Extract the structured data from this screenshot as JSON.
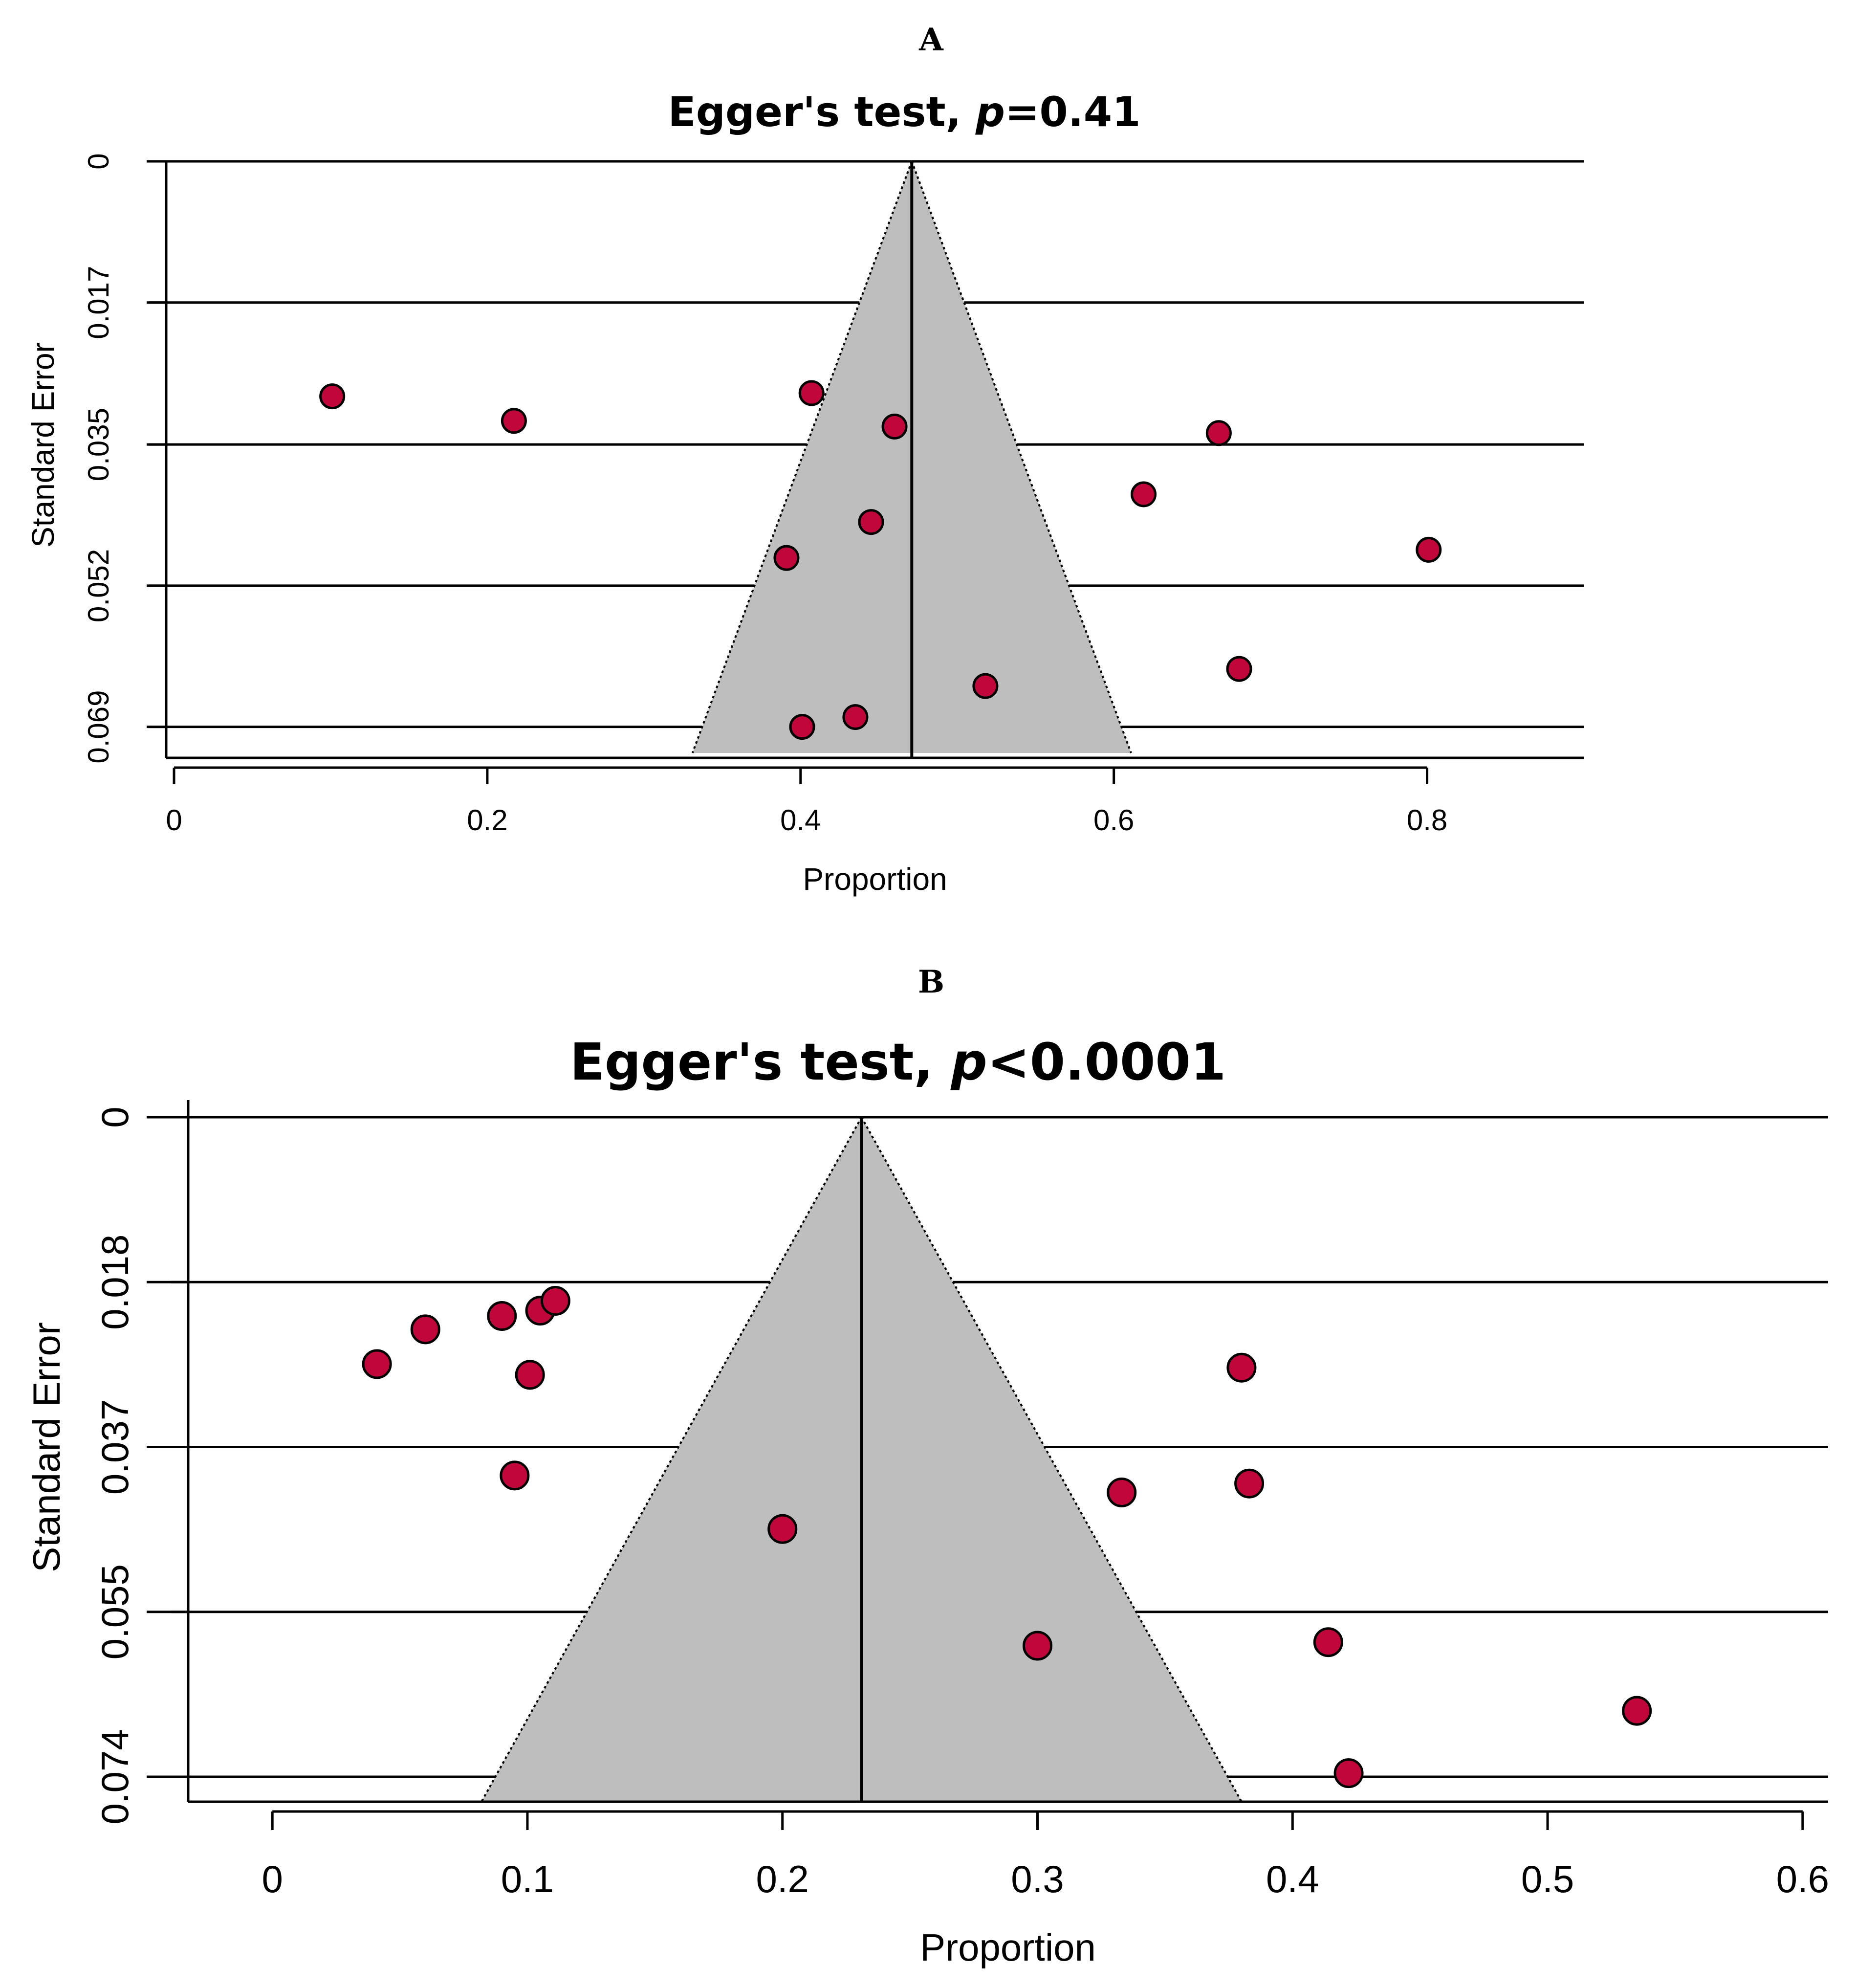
{
  "chart_data": [
    {
      "type": "scatter",
      "subtype": "funnel",
      "panel_label": "A",
      "title_prefix": "Egger's test, ",
      "title_p": "p",
      "title_suffix": "=0.41",
      "xlabel": "Proportion",
      "ylabel": "Standard Error",
      "xlim": [
        -0.005,
        0.9
      ],
      "ylim": [
        0,
        0.0725
      ],
      "x_ticks": [
        0,
        0.2,
        0.4,
        0.6,
        0.8
      ],
      "x_tick_labels": [
        "0",
        "0.2",
        "0.4",
        "0.6",
        "0.8"
      ],
      "y_ticks": [
        0,
        0.0173,
        0.0347,
        0.052,
        0.0693
      ],
      "y_tick_labels": [
        "0",
        "0.017",
        "0.035",
        "0.052",
        "0.069"
      ],
      "summary_estimate": 0.471,
      "funnel_base_se": 0.0725,
      "funnel_half_width_at_base": 0.14,
      "colors": {
        "point_fill": "#c0063b",
        "funnel_fill": "#bebebe"
      },
      "points": [
        {
          "x": 0.101,
          "y": 0.0288
        },
        {
          "x": 0.217,
          "y": 0.0318
        },
        {
          "x": 0.407,
          "y": 0.0284
        },
        {
          "x": 0.46,
          "y": 0.0325
        },
        {
          "x": 0.667,
          "y": 0.0333
        },
        {
          "x": 0.619,
          "y": 0.0408
        },
        {
          "x": 0.445,
          "y": 0.0442
        },
        {
          "x": 0.391,
          "y": 0.0486
        },
        {
          "x": 0.801,
          "y": 0.0476
        },
        {
          "x": 0.68,
          "y": 0.0622
        },
        {
          "x": 0.518,
          "y": 0.0643
        },
        {
          "x": 0.435,
          "y": 0.0681
        },
        {
          "x": 0.401,
          "y": 0.0693
        }
      ]
    },
    {
      "type": "scatter",
      "subtype": "funnel",
      "panel_label": "B",
      "title_prefix": "Egger's test, ",
      "title_p": "p",
      "title_suffix": "<0.0001",
      "xlabel": "Proportion",
      "ylabel": "Standard Error",
      "xlim": [
        -0.033,
        0.61
      ],
      "ylim": [
        0,
        0.0768
      ],
      "x_ticks": [
        0,
        0.1,
        0.2,
        0.3,
        0.4,
        0.5,
        0.6
      ],
      "x_tick_labels": [
        "0",
        "0.1",
        "0.2",
        "0.3",
        "0.4",
        "0.5",
        "0.6"
      ],
      "y_ticks": [
        0,
        0.0185,
        0.037,
        0.0555,
        0.074
      ],
      "y_tick_labels": [
        "0",
        "0.018",
        "0.037",
        "0.055",
        "0.074"
      ],
      "summary_estimate": 0.231,
      "funnel_base_se": 0.0768,
      "funnel_half_width_at_base": 0.149,
      "colors": {
        "point_fill": "#c0063b",
        "funnel_fill": "#bebebe"
      },
      "points": [
        {
          "x": 0.041,
          "y": 0.0277
        },
        {
          "x": 0.06,
          "y": 0.0238
        },
        {
          "x": 0.09,
          "y": 0.0223
        },
        {
          "x": 0.105,
          "y": 0.0217
        },
        {
          "x": 0.111,
          "y": 0.0206
        },
        {
          "x": 0.101,
          "y": 0.0289
        },
        {
          "x": 0.095,
          "y": 0.0402
        },
        {
          "x": 0.2,
          "y": 0.0462
        },
        {
          "x": 0.38,
          "y": 0.0281
        },
        {
          "x": 0.333,
          "y": 0.0421
        },
        {
          "x": 0.383,
          "y": 0.0411
        },
        {
          "x": 0.3,
          "y": 0.0593
        },
        {
          "x": 0.414,
          "y": 0.0589
        },
        {
          "x": 0.535,
          "y": 0.0666
        },
        {
          "x": 0.422,
          "y": 0.0736
        }
      ]
    }
  ]
}
